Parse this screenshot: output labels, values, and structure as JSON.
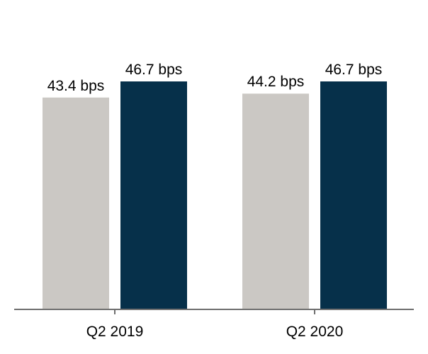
{
  "chart_data": {
    "type": "bar",
    "categories": [
      "Q2 2019",
      "Q2 2020"
    ],
    "series": [
      {
        "values": [
          43.4,
          44.2
        ],
        "labels": [
          "43.4 bps",
          "44.2 bps"
        ],
        "color": "#cbc8c4"
      },
      {
        "values": [
          46.7,
          46.7
        ],
        "labels": [
          "46.7 bps",
          "46.7 bps"
        ],
        "color": "#06304a"
      }
    ],
    "unit": "bps",
    "ylim": [
      0,
      56
    ],
    "grid": false,
    "axis_color": "#6e6e6e"
  }
}
